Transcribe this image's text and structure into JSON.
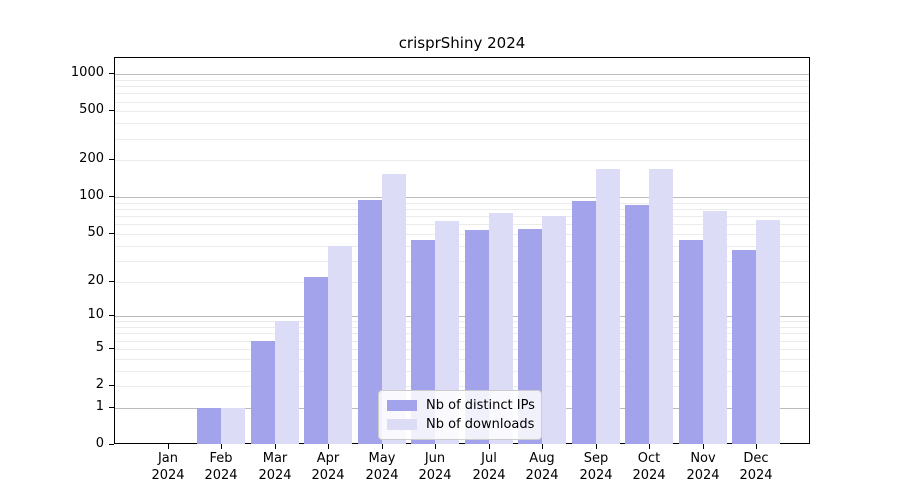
{
  "title": "crisprShiny 2024",
  "chart_data": {
    "type": "bar",
    "title": "crisprShiny 2024",
    "categories": [
      "Jan",
      "Feb",
      "Mar",
      "Apr",
      "May",
      "Jun",
      "Jul",
      "Aug",
      "Sep",
      "Oct",
      "Nov",
      "Dec"
    ],
    "year": "2024",
    "series": [
      {
        "name": "Nb of distinct IPs",
        "color": "#a3a3ec",
        "values": [
          0,
          1,
          6,
          22,
          95,
          45,
          54,
          55,
          94,
          87,
          45,
          37
        ]
      },
      {
        "name": "Nb of downloads",
        "color": "#dcdcf7",
        "values": [
          0,
          1,
          9,
          40,
          156,
          64,
          75,
          70,
          169,
          169,
          77,
          65
        ]
      }
    ],
    "y_scale": "log1p",
    "yticks": [
      0,
      1,
      2,
      5,
      10,
      20,
      50,
      100,
      200,
      500,
      1000
    ],
    "yticks_minor": [
      3,
      4,
      6,
      7,
      8,
      9,
      30,
      40,
      60,
      70,
      80,
      90,
      300,
      400,
      600,
      700,
      800,
      900
    ],
    "ylim": [
      0,
      1356
    ],
    "grid": true,
    "legend_position": "lower center",
    "xlabel": "",
    "ylabel": ""
  },
  "colors": {
    "bar_ips": "#a3a3ec",
    "bar_downloads": "#dcdcf7",
    "grid_major": "#bbbbbb",
    "grid_minor": "#ebebeb",
    "axis": "#000000",
    "legend_border": "#cccccc"
  }
}
